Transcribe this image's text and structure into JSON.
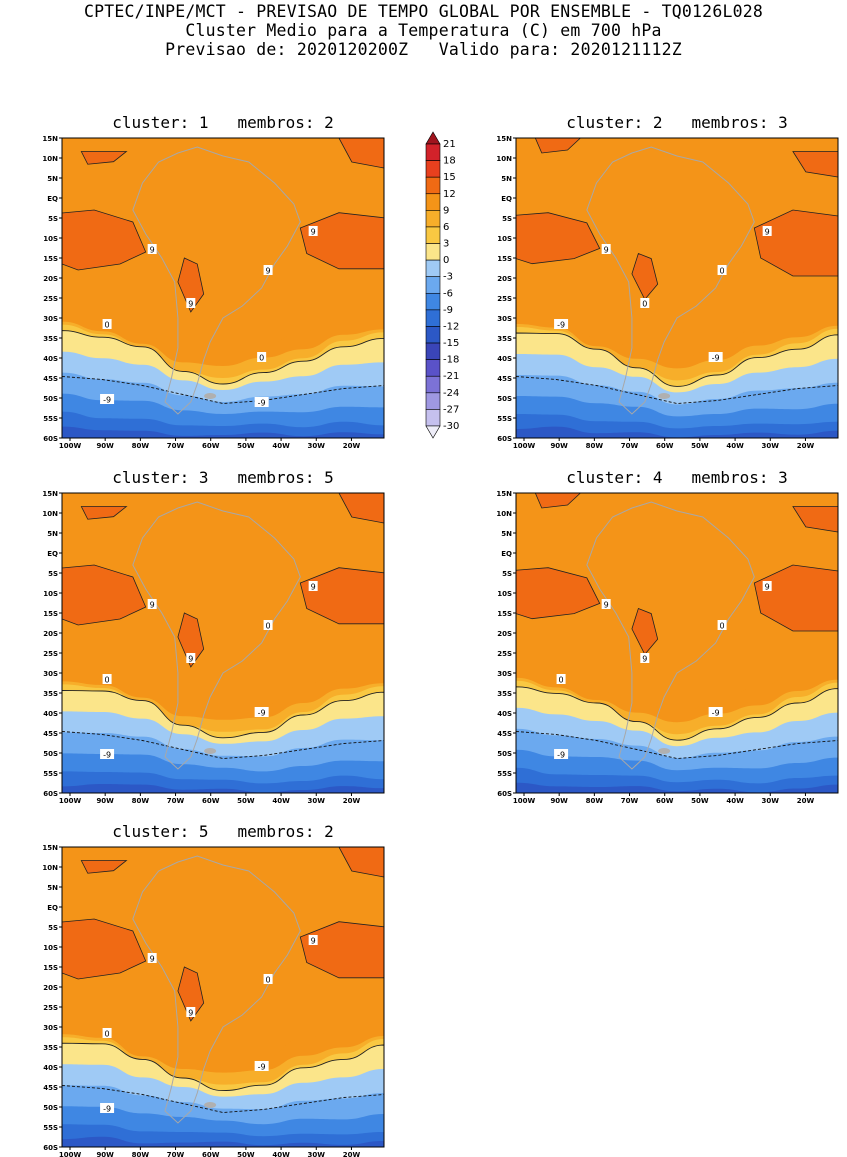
{
  "header": {
    "line1": "CPTEC/INPE/MCT - PREVISAO DE TEMPO GLOBAL POR ENSEMBLE - TQ0126L028",
    "line2": "Cluster Medio para a Temperatura (C) em 700 hPa",
    "line3": "Previsao de: 2020120200Z   Valido para: 2020121112Z"
  },
  "axes": {
    "lat_labels": [
      "15N",
      "10N",
      "5N",
      "EQ",
      "5S",
      "10S",
      "15S",
      "20S",
      "25S",
      "30S",
      "35S",
      "40S",
      "45S",
      "50S",
      "55S",
      "60S"
    ],
    "lon_labels": [
      "100W",
      "90W",
      "80W",
      "70W",
      "60W",
      "50W",
      "40W",
      "30W",
      "20W"
    ]
  },
  "colorbar": {
    "labels": [
      "21",
      "18",
      "15",
      "12",
      "9",
      "6",
      "3",
      "0",
      "-3",
      "-6",
      "-9",
      "-12",
      "-15",
      "-18",
      "-21",
      "-24",
      "-27",
      "-30"
    ],
    "colors": [
      "#a0141e",
      "#d2222a",
      "#e8401e",
      "#f06a14",
      "#f49418",
      "#f7ae2a",
      "#f9c842",
      "#fbe58a",
      "#9fcaf5",
      "#6ba9ef",
      "#3f87e3",
      "#2f6fd6",
      "#2c58c6",
      "#3a45b8",
      "#5a52c8",
      "#7c72d6",
      "#9f98e2",
      "#c5c0ee",
      "#eeedf8"
    ]
  },
  "panels": [
    {
      "title": "cluster: 1   membros: 2",
      "labels": [
        "9",
        "9",
        "9",
        "9",
        "0",
        "0",
        "-9",
        "-9"
      ]
    },
    {
      "title": "cluster: 2   membros: 3",
      "labels": [
        "9",
        "9",
        "0",
        "0",
        "-9",
        "-9"
      ]
    },
    {
      "title": "cluster: 3   membros: 5",
      "labels": [
        "9",
        "9",
        "9",
        "0",
        "0",
        "-9",
        "-9"
      ]
    },
    {
      "title": "cluster: 4   membros: 3",
      "labels": [
        "9",
        "9",
        "9",
        "0",
        "0",
        "-9",
        "-9"
      ]
    },
    {
      "title": "cluster: 5   membros: 2",
      "labels": [
        "9",
        "9",
        "9",
        "0",
        "0",
        "-9",
        "-9"
      ]
    }
  ]
}
